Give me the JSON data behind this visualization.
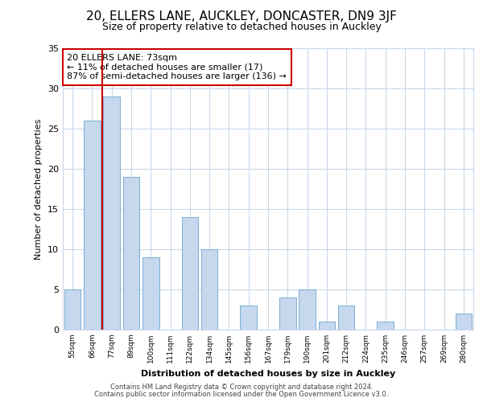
{
  "title": "20, ELLERS LANE, AUCKLEY, DONCASTER, DN9 3JF",
  "subtitle": "Size of property relative to detached houses in Auckley",
  "xlabel": "Distribution of detached houses by size in Auckley",
  "ylabel": "Number of detached properties",
  "bar_labels": [
    "55sqm",
    "66sqm",
    "77sqm",
    "89sqm",
    "100sqm",
    "111sqm",
    "122sqm",
    "134sqm",
    "145sqm",
    "156sqm",
    "167sqm",
    "179sqm",
    "190sqm",
    "201sqm",
    "212sqm",
    "224sqm",
    "235sqm",
    "246sqm",
    "257sqm",
    "269sqm",
    "280sqm"
  ],
  "bar_values": [
    5,
    26,
    29,
    19,
    9,
    0,
    14,
    10,
    0,
    3,
    0,
    4,
    5,
    1,
    3,
    0,
    1,
    0,
    0,
    0,
    2
  ],
  "bar_color": "#c5d8ed",
  "bar_edge_color": "#7bafd4",
  "vline_x": 1.5,
  "vline_color": "#cc0000",
  "annotation_text": "20 ELLERS LANE: 73sqm\n← 11% of detached houses are smaller (17)\n87% of semi-detached houses are larger (136) →",
  "annotation_box_color": "#ffffff",
  "annotation_box_edge": "#cc0000",
  "ylim": [
    0,
    35
  ],
  "yticks": [
    0,
    5,
    10,
    15,
    20,
    25,
    30,
    35
  ],
  "footer1": "Contains HM Land Registry data © Crown copyright and database right 2024.",
  "footer2": "Contains public sector information licensed under the Open Government Licence v3.0.",
  "bg_color": "#ffffff",
  "grid_color": "#c8d8e8",
  "title_fontsize": 11,
  "subtitle_fontsize": 9,
  "footer_fontsize": 6
}
